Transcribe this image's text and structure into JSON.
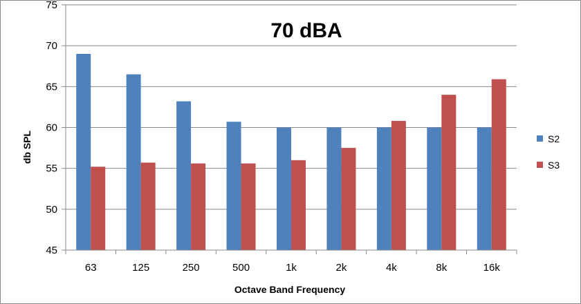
{
  "chart_data": {
    "type": "bar",
    "title": "70 dBA",
    "xlabel": "Octave Band Frequency",
    "ylabel": "db SPL",
    "ylim": [
      45,
      75
    ],
    "yticks": [
      45,
      50,
      55,
      60,
      65,
      70,
      75
    ],
    "grid": true,
    "legend_position": "right",
    "categories": [
      "63",
      "125",
      "250",
      "500",
      "1k",
      "2k",
      "4k",
      "8k",
      "16k"
    ],
    "series": [
      {
        "name": "S2",
        "color": "#4F81BD",
        "values": [
          69.0,
          66.5,
          63.2,
          60.7,
          60.0,
          60.0,
          60.0,
          60.0,
          60.0
        ]
      },
      {
        "name": "S3",
        "color": "#C0504D",
        "values": [
          55.2,
          55.7,
          55.6,
          55.6,
          56.0,
          57.5,
          60.8,
          64.0,
          65.9
        ]
      }
    ]
  }
}
